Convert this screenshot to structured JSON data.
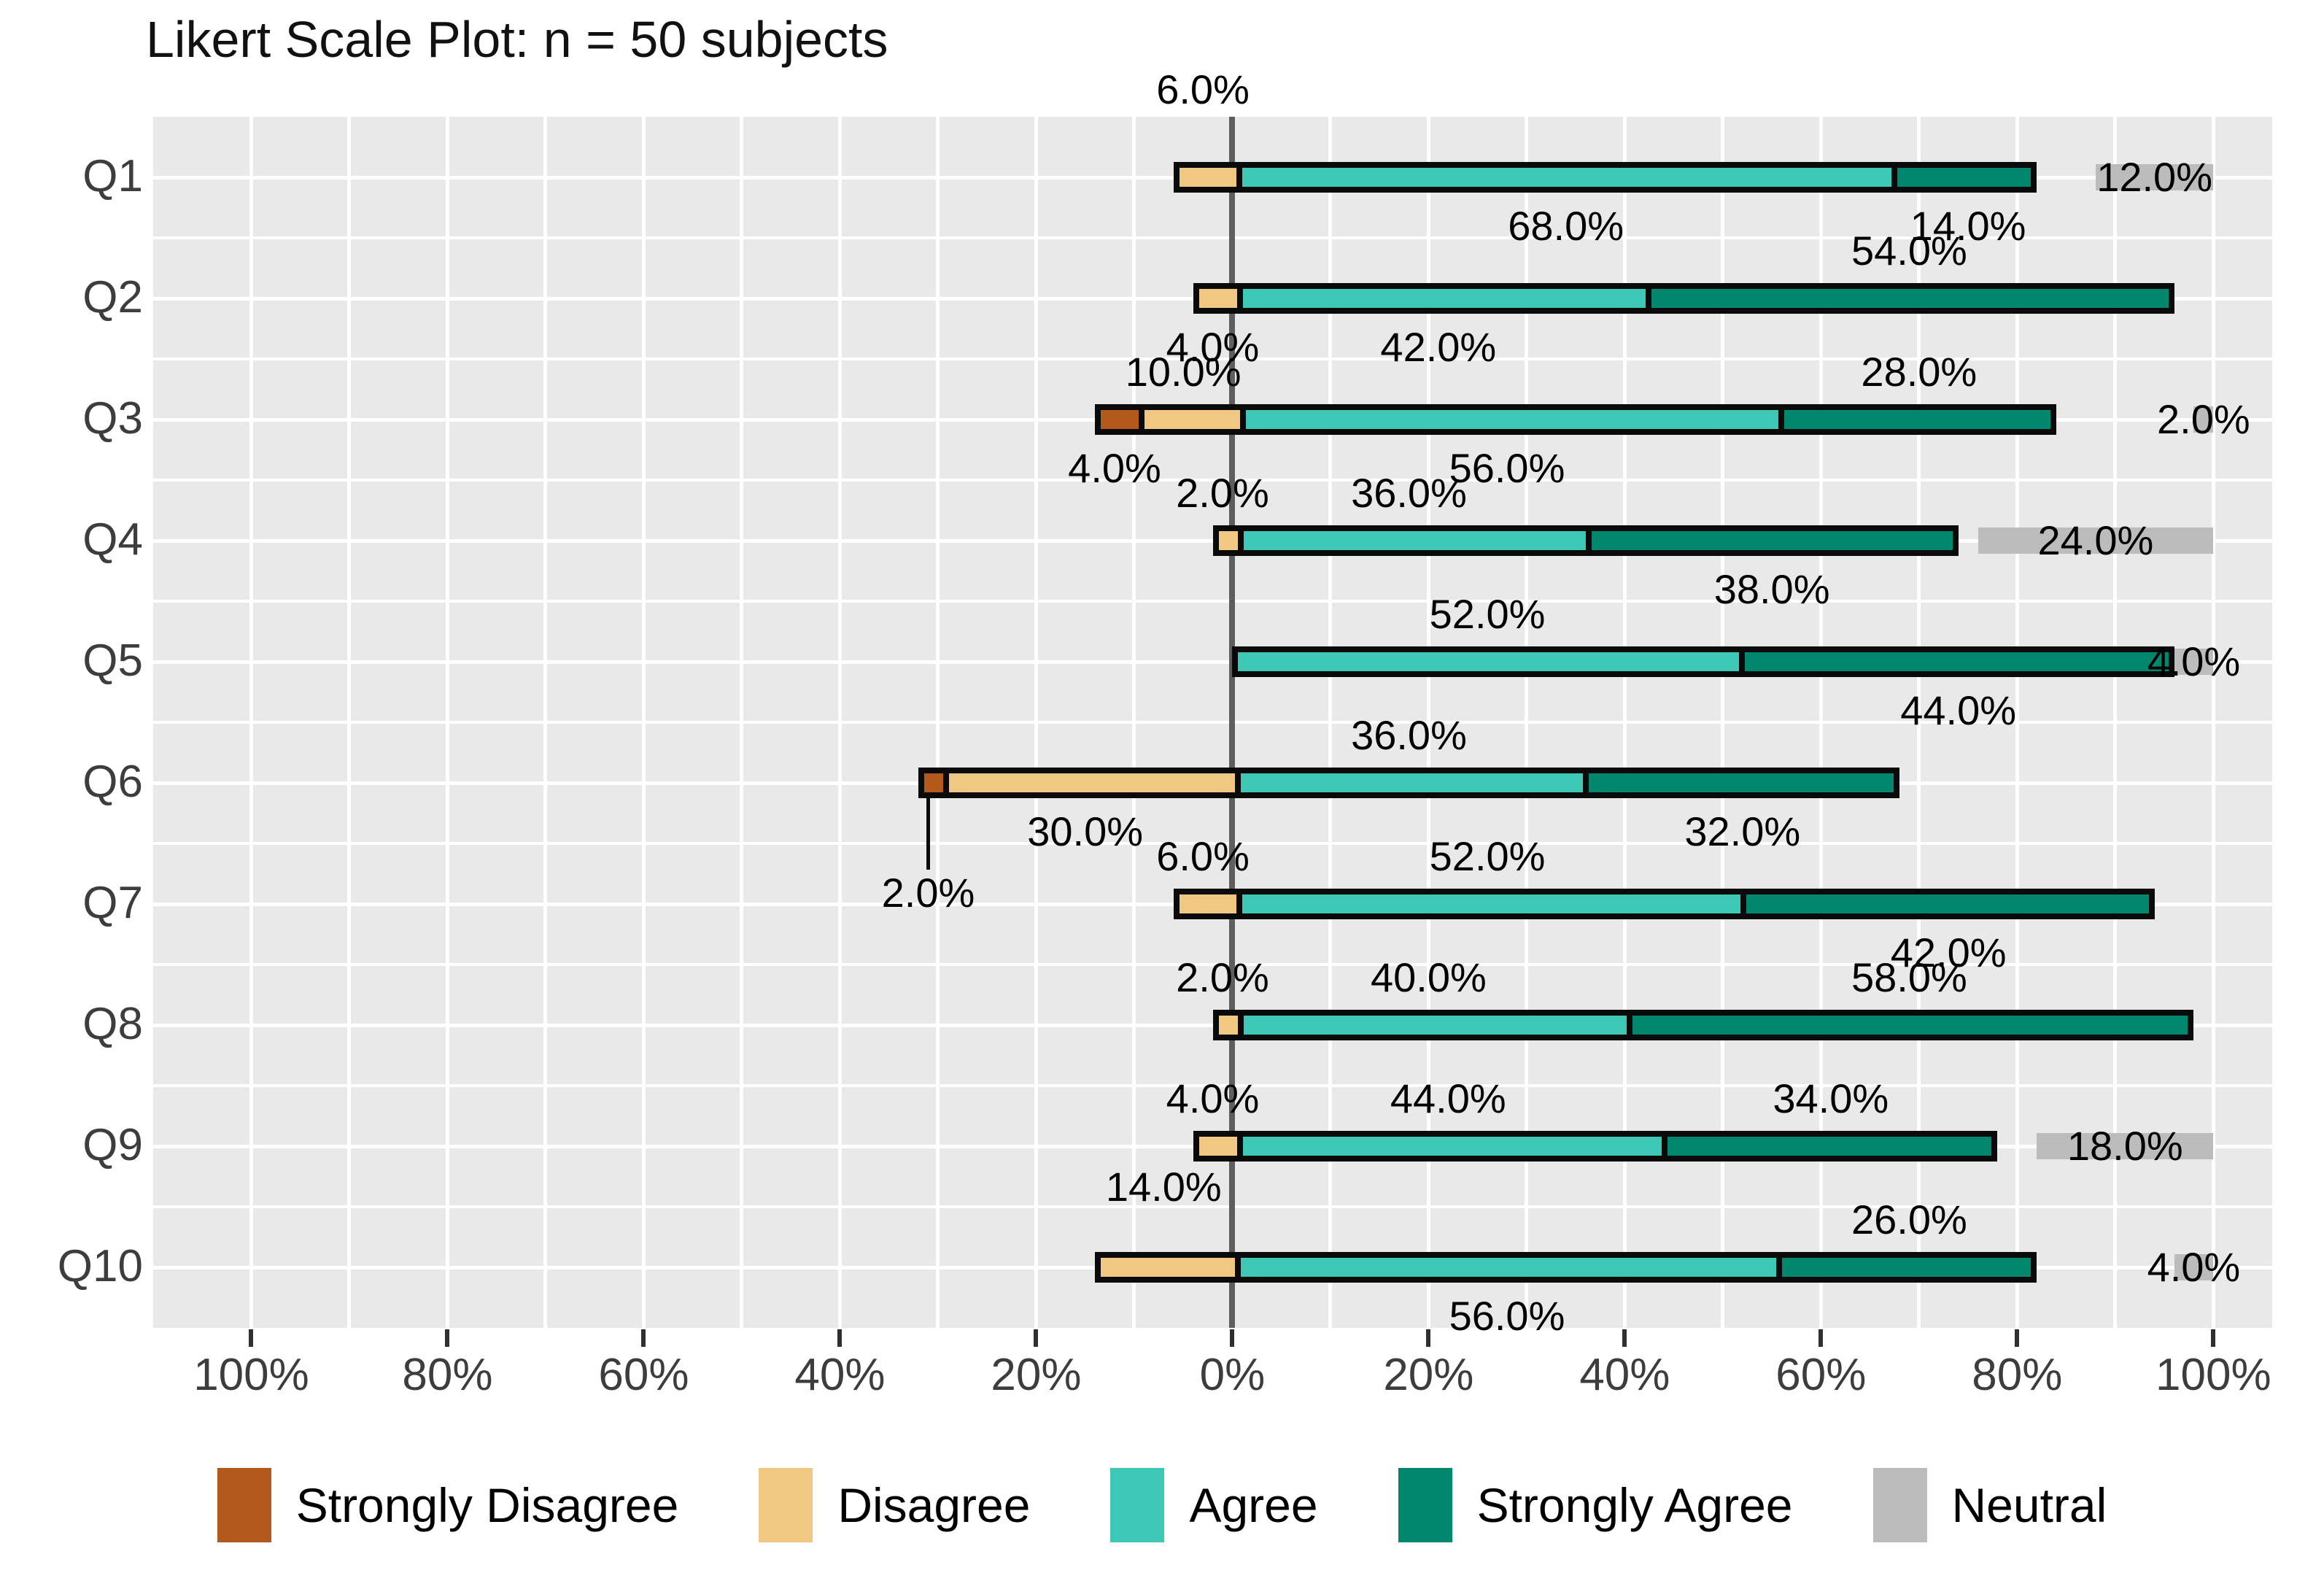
{
  "title": "Likert Scale Plot: n = 50 subjects",
  "chart_data": {
    "type": "bar",
    "subtype": "diverging-stacked-likert",
    "title": "Likert Scale Plot: n = 50 subjects",
    "n_subjects": 50,
    "categories": [
      "Q1",
      "Q2",
      "Q3",
      "Q4",
      "Q5",
      "Q6",
      "Q7",
      "Q8",
      "Q9",
      "Q10"
    ],
    "levels": [
      {
        "name": "Strongly Disagree",
        "color": "#b4591c",
        "side": "negative"
      },
      {
        "name": "Disagree",
        "color": "#f0c882",
        "side": "negative"
      },
      {
        "name": "Agree",
        "color": "#3cc8b4",
        "side": "positive"
      },
      {
        "name": "Strongly Agree",
        "color": "#00876e",
        "side": "positive"
      },
      {
        "name": "Neutral",
        "color": "#bcbcbc",
        "side": "right-aligned-at-100"
      }
    ],
    "series": [
      {
        "name": "Strongly Disagree",
        "values": [
          0,
          0,
          4,
          0,
          0,
          2,
          0,
          0,
          0,
          0
        ]
      },
      {
        "name": "Disagree",
        "values": [
          6,
          4,
          10,
          2,
          0,
          30,
          6,
          2,
          4,
          14
        ]
      },
      {
        "name": "Agree",
        "values": [
          68,
          42,
          56,
          36,
          52,
          36,
          52,
          40,
          44,
          56
        ]
      },
      {
        "name": "Strongly Agree",
        "values": [
          14,
          54,
          28,
          38,
          44,
          32,
          42,
          58,
          34,
          26
        ]
      },
      {
        "name": "Neutral",
        "values": [
          12,
          0,
          2,
          24,
          4,
          0,
          0,
          0,
          18,
          4
        ]
      }
    ],
    "value_suffix": "%",
    "label_decimals": 1,
    "label_placements": {
      "Strongly Disagree": [
        null,
        null,
        "below",
        null,
        null,
        "leader",
        null,
        null,
        null,
        null
      ],
      "Disagree": [
        "above:-55",
        "below",
        "above",
        "above",
        null,
        "below",
        "above",
        "above",
        "above",
        "above:-45"
      ],
      "Agree": [
        "below",
        "below",
        "below",
        "above",
        "above",
        "above",
        "above",
        "above",
        "above",
        "below"
      ],
      "Strongly Agree": [
        "below",
        "above",
        "above",
        "below",
        "below",
        "below",
        "below",
        "above",
        "above",
        "above"
      ],
      "Neutral": [
        "on",
        null,
        "on",
        "on",
        "on",
        null,
        null,
        null,
        "on",
        "on"
      ]
    },
    "x_domain": [
      -110,
      106
    ],
    "x_ticks": [
      -100,
      -80,
      -60,
      -40,
      -20,
      0,
      20,
      40,
      60,
      80,
      100
    ],
    "x_tick_labels": [
      "100%",
      "80%",
      "60%",
      "40%",
      "20%",
      "0%",
      "20%",
      "40%",
      "60%",
      "80%",
      "100%"
    ],
    "grid": {
      "vertical_minor_step": 10,
      "horizontal": "row centers and row boundaries",
      "color": "#ffffff"
    },
    "panel_background": "#e9e9e9",
    "zero_line_color": "#5e5e5e",
    "bar_border_color": "#0a0a0a",
    "axis_text_color": "#3d3d3d",
    "legend_position": "bottom",
    "legend_labels": [
      "Strongly Disagree",
      "Disagree",
      "Agree",
      "Strongly Agree",
      "Neutral"
    ]
  }
}
